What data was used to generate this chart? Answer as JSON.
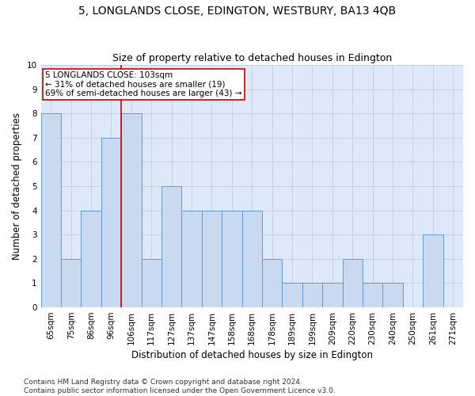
{
  "title": "5, LONGLANDS CLOSE, EDINGTON, WESTBURY, BA13 4QB",
  "subtitle": "Size of property relative to detached houses in Edington",
  "xlabel": "Distribution of detached houses by size in Edington",
  "ylabel": "Number of detached properties",
  "categories": [
    "65sqm",
    "75sqm",
    "86sqm",
    "96sqm",
    "106sqm",
    "117sqm",
    "127sqm",
    "137sqm",
    "147sqm",
    "158sqm",
    "168sqm",
    "178sqm",
    "189sqm",
    "199sqm",
    "209sqm",
    "220sqm",
    "230sqm",
    "240sqm",
    "250sqm",
    "261sqm",
    "271sqm"
  ],
  "values": [
    8,
    2,
    4,
    7,
    8,
    2,
    5,
    4,
    4,
    4,
    4,
    2,
    1,
    1,
    1,
    2,
    1,
    1,
    0,
    3,
    0
  ],
  "bar_color": "#c8d9f0",
  "bar_edge_color": "#6699cc",
  "ylim": [
    0,
    10
  ],
  "yticks": [
    0,
    1,
    2,
    3,
    4,
    5,
    6,
    7,
    8,
    9,
    10
  ],
  "vline_index": 3.5,
  "vline_color": "#cc0000",
  "annotation_line1": "5 LONGLANDS CLOSE: 103sqm",
  "annotation_line2": "← 31% of detached houses are smaller (19)",
  "annotation_line3": "69% of semi-detached houses are larger (43) →",
  "annotation_box_color": "#ffffff",
  "annotation_box_edge": "#cc0000",
  "footer_text": "Contains HM Land Registry data © Crown copyright and database right 2024.\nContains public sector information licensed under the Open Government Licence v3.0.",
  "bg_color": "#dde8f8",
  "title_fontsize": 10,
  "subtitle_fontsize": 9,
  "axis_label_fontsize": 8.5,
  "tick_fontsize": 7.5,
  "annotation_fontsize": 7.5,
  "footer_fontsize": 6.5
}
